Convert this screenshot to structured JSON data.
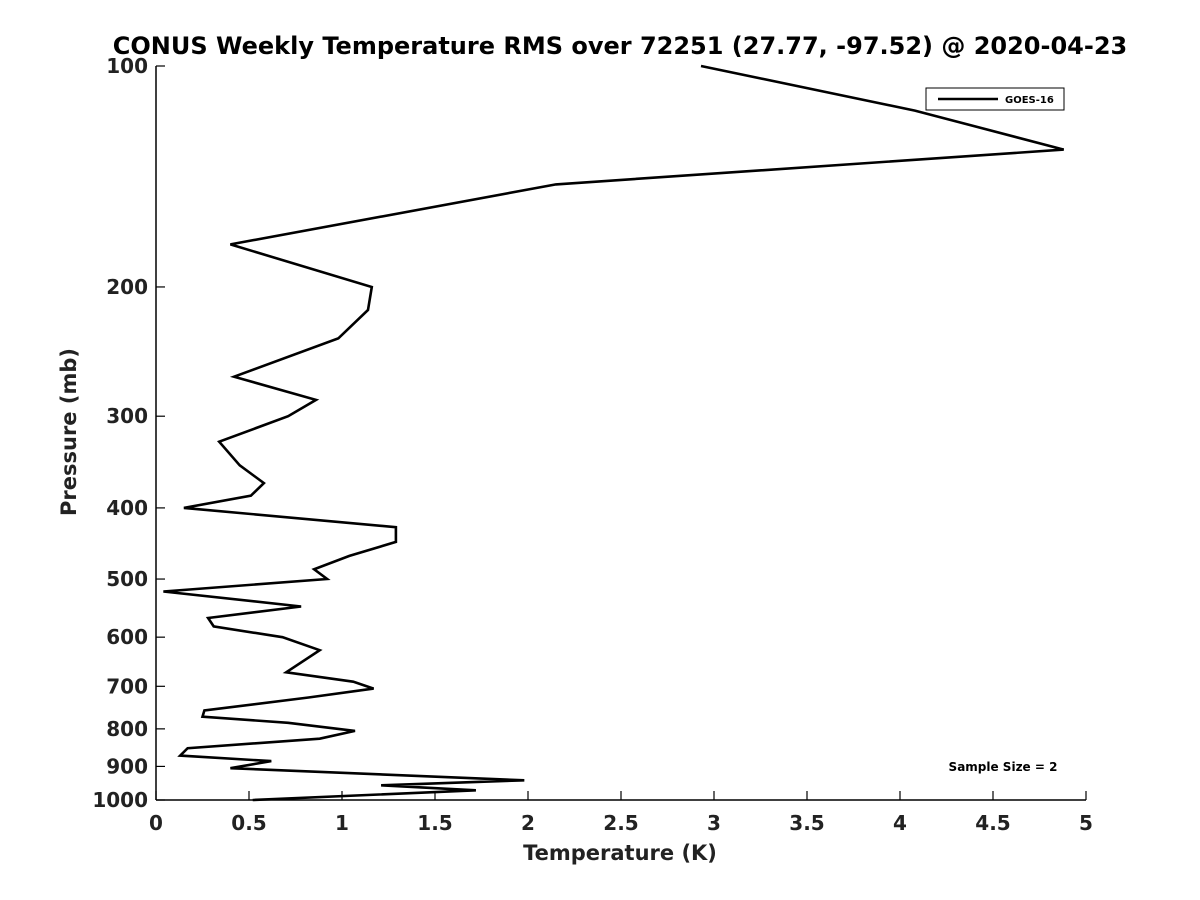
{
  "chart_data": {
    "type": "line",
    "title": "CONUS Weekly Temperature RMS over 72251 (27.77, -97.52) @ 2020-04-23",
    "xlabel": "Temperature (K)",
    "ylabel": "Pressure (mb)",
    "xlim": [
      0,
      5
    ],
    "ylim": [
      100,
      1000
    ],
    "y_scale": "log",
    "y_reversed": true,
    "x_ticks": [
      0,
      0.5,
      1,
      1.5,
      2,
      2.5,
      3,
      3.5,
      4,
      4.5,
      5
    ],
    "x_tick_labels": [
      "0",
      "0.5",
      "1",
      "1.5",
      "2",
      "2.5",
      "3",
      "3.5",
      "4",
      "4.5",
      "5"
    ],
    "y_ticks": [
      100,
      200,
      300,
      400,
      500,
      600,
      700,
      800,
      900,
      1000
    ],
    "y_tick_labels": [
      "100",
      "200",
      "300",
      "400",
      "500",
      "600",
      "700",
      "800",
      "900",
      "1000"
    ],
    "grid": false,
    "legend_position": "top-right",
    "annotation": "Sample Size = 2",
    "series": [
      {
        "name": "GOES-16",
        "color": "#000000",
        "points": [
          [
            2.93,
            100
          ],
          [
            4.08,
            115
          ],
          [
            4.88,
            130
          ],
          [
            2.15,
            145
          ],
          [
            0.4,
            175
          ],
          [
            1.16,
            200
          ],
          [
            1.14,
            215
          ],
          [
            0.98,
            235
          ],
          [
            0.42,
            265
          ],
          [
            0.86,
            285
          ],
          [
            0.71,
            300
          ],
          [
            0.34,
            325
          ],
          [
            0.45,
            350
          ],
          [
            0.58,
            370
          ],
          [
            0.51,
            385
          ],
          [
            0.15,
            400
          ],
          [
            1.29,
            425
          ],
          [
            1.29,
            445
          ],
          [
            1.04,
            465
          ],
          [
            0.85,
            485
          ],
          [
            0.92,
            500
          ],
          [
            0.04,
            520
          ],
          [
            0.78,
            545
          ],
          [
            0.28,
            565
          ],
          [
            0.31,
            580
          ],
          [
            0.68,
            600
          ],
          [
            0.88,
            625
          ],
          [
            0.7,
            670
          ],
          [
            1.06,
            690
          ],
          [
            1.17,
            705
          ],
          [
            0.82,
            725
          ],
          [
            0.26,
            755
          ],
          [
            0.25,
            770
          ],
          [
            0.71,
            785
          ],
          [
            1.07,
            805
          ],
          [
            0.88,
            825
          ],
          [
            0.17,
            850
          ],
          [
            0.13,
            870
          ],
          [
            0.62,
            885
          ],
          [
            0.4,
            905
          ],
          [
            1.98,
            940
          ],
          [
            1.21,
            955
          ],
          [
            1.72,
            970
          ],
          [
            0.52,
            1000
          ]
        ]
      }
    ]
  }
}
